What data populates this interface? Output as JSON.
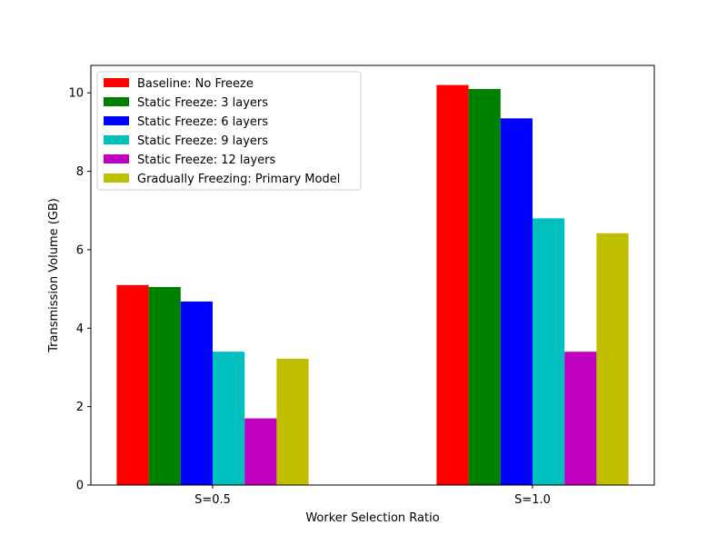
{
  "chart_data": {
    "type": "bar",
    "title": "",
    "xlabel": "Worker Selection Ratio",
    "ylabel": "Transmission Volume (GB)",
    "categories": [
      "S=0.5",
      "S=1.0"
    ],
    "ylim": [
      0,
      10.7
    ],
    "yticks": [
      0,
      2,
      4,
      6,
      8,
      10
    ],
    "legend_position": "upper-left",
    "series": [
      {
        "name": "Baseline: No Freeze",
        "color": "#ff0000",
        "values": [
          5.1,
          10.2
        ]
      },
      {
        "name": "Static Freeze: 3 layers",
        "color": "#008000",
        "values": [
          5.05,
          10.1
        ]
      },
      {
        "name": "Static Freeze: 6 layers",
        "color": "#0000ff",
        "values": [
          4.68,
          9.35
        ]
      },
      {
        "name": "Static Freeze: 9 layers",
        "color": "#00bfbf",
        "values": [
          3.4,
          6.8
        ]
      },
      {
        "name": "Static Freeze: 12 layers",
        "color": "#bf00bf",
        "values": [
          1.7,
          3.4
        ]
      },
      {
        "name": "Gradually Freezing: Primary Model",
        "color": "#bfbf00",
        "values": [
          3.22,
          6.42
        ]
      }
    ]
  }
}
